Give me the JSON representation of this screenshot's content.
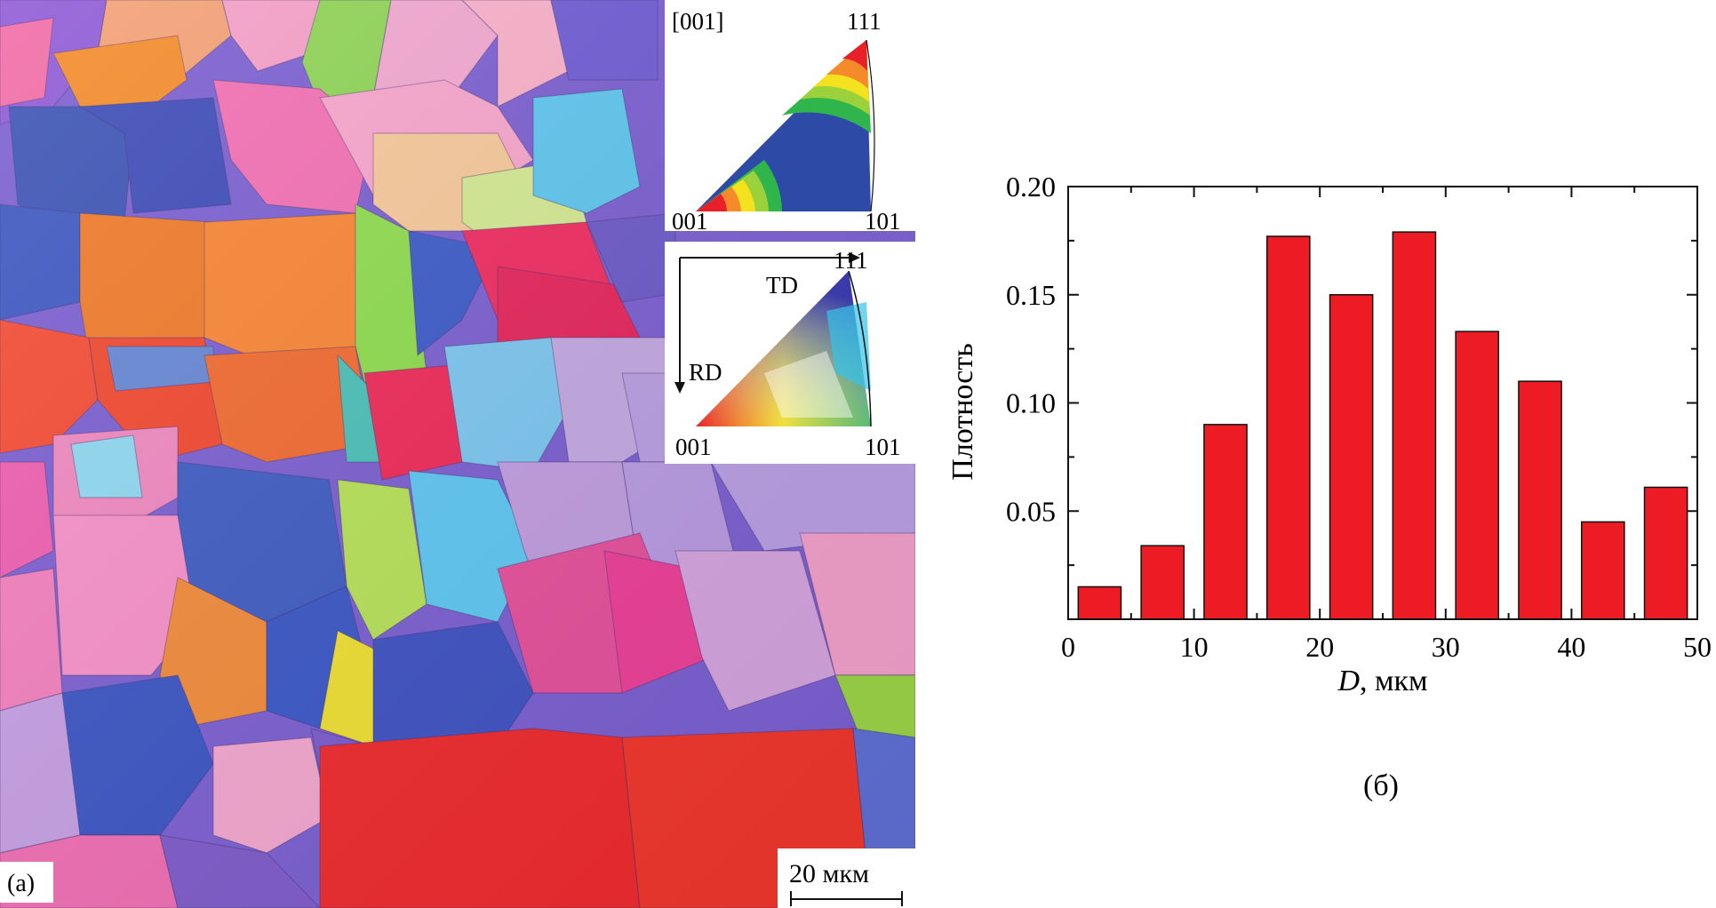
{
  "panel_a": {
    "label": "(a)",
    "scale_bar": "20 мкм",
    "ipf_key_upper": {
      "direction": "[001]",
      "corner_111": "111",
      "corner_001": "001",
      "corner_101": "101"
    },
    "ipf_key_lower": {
      "td": "TD",
      "rd": "RD",
      "corner_111": "111",
      "corner_001": "001",
      "corner_101": "101"
    }
  },
  "panel_b": {
    "label": "(б)"
  },
  "chart_data": {
    "type": "bar",
    "title": "",
    "xlabel_italic": "D",
    "xlabel_rest": ", мкм",
    "ylabel": "Плотность",
    "xlim": [
      0,
      50
    ],
    "ylim": [
      0,
      0.2
    ],
    "x_ticks": [
      "0",
      "10",
      "20",
      "30",
      "40",
      "50"
    ],
    "y_ticks": [
      "0.05",
      "0.10",
      "0.15",
      "0.20"
    ],
    "bar_color": "#ed1c24",
    "bins": [
      2.5,
      7.5,
      12.5,
      17.5,
      22.5,
      27.5,
      32.5,
      37.5,
      42.5,
      47.5
    ],
    "values": [
      0.015,
      0.034,
      0.09,
      0.177,
      0.15,
      0.179,
      0.133,
      0.11,
      0.045,
      0.061
    ]
  }
}
